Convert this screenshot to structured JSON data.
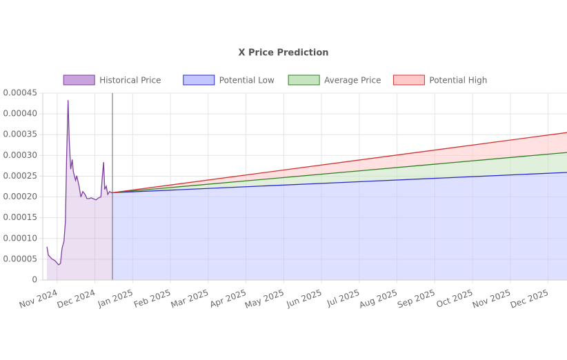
{
  "chart_data": {
    "type": "line",
    "title": "X Price Prediction",
    "legend": "top",
    "grid": true,
    "xlim": [
      -0.38,
      13.5
    ],
    "xticks": [
      {
        "value": 0,
        "label": "Nov 2024"
      },
      {
        "value": 1,
        "label": "Dec 2024"
      },
      {
        "value": 2,
        "label": "Jan 2025"
      },
      {
        "value": 3,
        "label": "Feb 2025"
      },
      {
        "value": 4,
        "label": "Mar 2025"
      },
      {
        "value": 5,
        "label": "Apr 2025"
      },
      {
        "value": 6,
        "label": "May 2025"
      },
      {
        "value": 7,
        "label": "Jun 2025"
      },
      {
        "value": 8,
        "label": "Jul 2025"
      },
      {
        "value": 9,
        "label": "Aug 2025"
      },
      {
        "value": 10,
        "label": "Sep 2025"
      },
      {
        "value": 11,
        "label": "Oct 2025"
      },
      {
        "value": 12,
        "label": "Nov 2025"
      },
      {
        "value": 13,
        "label": "Dec 2025"
      }
    ],
    "ylim": [
      0,
      0.00045
    ],
    "yticks": [
      0,
      5e-05,
      {
        "value": 0.0001,
        "label": "0.00010"
      },
      0.00015,
      {
        "value": 0.0002,
        "label": "0.00020"
      },
      0.00025,
      {
        "value": 0.0003,
        "label": "0.00030"
      },
      0.00035,
      {
        "value": 0.0004,
        "label": "0.00040"
      },
      0.00045
    ],
    "series": [
      {
        "name": "Historical Price",
        "color": "#7b3fa0",
        "fill": "#c9a3db",
        "x": [
          -0.27,
          -0.23,
          -0.14,
          -0.05,
          0.04,
          0.09,
          0.13,
          0.18,
          0.22,
          0.25,
          0.29,
          0.32,
          0.36,
          0.4,
          0.43,
          0.49,
          0.52,
          0.58,
          0.63,
          0.68,
          0.74,
          0.79,
          0.85,
          0.9,
          0.95,
          1.03,
          1.1,
          1.16,
          1.19,
          1.23,
          1.26,
          1.3,
          1.34,
          1.39,
          1.44
        ],
        "values": [
          8e-05,
          6e-05,
          5.1e-05,
          4.6e-05,
          3.65e-05,
          4e-05,
          7.6e-05,
          9.3e-05,
          0.000143,
          0.00029,
          0.000433,
          0.00034,
          0.000267,
          0.00029,
          0.00026,
          0.00024,
          0.000251,
          0.000226,
          0.0002,
          0.000213,
          0.000206,
          0.000196,
          0.000196,
          0.000198,
          0.000196,
          0.000193,
          0.000198,
          0.0002,
          0.000242,
          0.000284,
          0.000218,
          0.000226,
          0.000206,
          0.000213,
          0.00021
        ]
      },
      {
        "name": "Potential Low",
        "color": "#2a2acb",
        "fill": "#c3c6ff",
        "x": [
          1.44,
          13.5
        ],
        "values": [
          0.00021,
          0.000259
        ]
      },
      {
        "name": "Average Price",
        "color": "#2f7d20",
        "fill": "#c6e4bf",
        "x": [
          1.44,
          13.5
        ],
        "values": [
          0.00021,
          0.000307
        ]
      },
      {
        "name": "Potential High",
        "color": "#d43030",
        "fill": "#ffc9c9",
        "x": [
          1.44,
          13.5
        ],
        "values": [
          0.00021,
          0.000355
        ]
      }
    ]
  }
}
